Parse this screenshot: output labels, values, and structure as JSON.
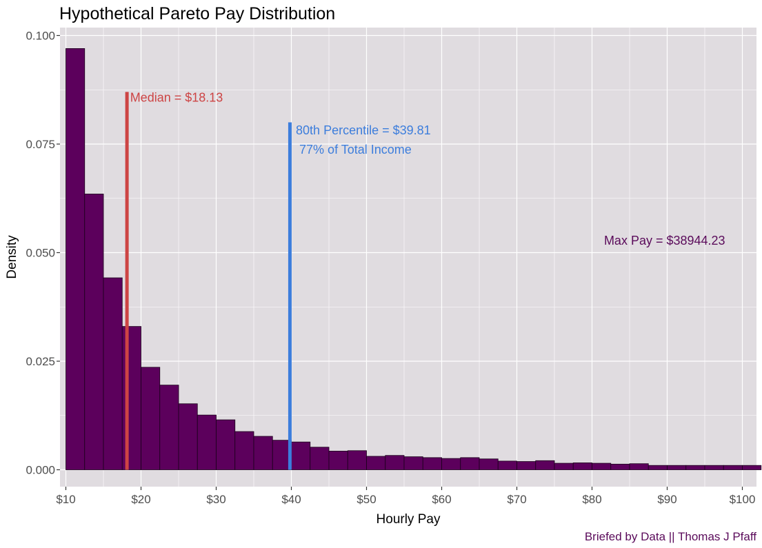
{
  "chart_data": {
    "type": "bar",
    "title": "Hypothetical Pareto Pay Distribution",
    "xlabel": "Hourly Pay",
    "ylabel": "Density",
    "xlim": [
      10,
      100
    ],
    "ylim": [
      0,
      0.1
    ],
    "grid": true,
    "x_ticks": [
      {
        "value": 10,
        "label": "$10"
      },
      {
        "value": 20,
        "label": "$20"
      },
      {
        "value": 30,
        "label": "$30"
      },
      {
        "value": 40,
        "label": "$40"
      },
      {
        "value": 50,
        "label": "$50"
      },
      {
        "value": 60,
        "label": "$60"
      },
      {
        "value": 70,
        "label": "$70"
      },
      {
        "value": 80,
        "label": "$80"
      },
      {
        "value": 90,
        "label": "$90"
      },
      {
        "value": 100,
        "label": "$100"
      }
    ],
    "y_ticks": [
      {
        "value": 0,
        "label": "0.000"
      },
      {
        "value": 0.025,
        "label": "0.025"
      },
      {
        "value": 0.05,
        "label": "0.050"
      },
      {
        "value": 0.075,
        "label": "0.075"
      },
      {
        "value": 0.1,
        "label": "0.100"
      }
    ],
    "bins": {
      "start": 10,
      "width": 2.5,
      "values": [
        0.097,
        0.0635,
        0.0442,
        0.033,
        0.0236,
        0.0195,
        0.0152,
        0.0126,
        0.0115,
        0.0088,
        0.0077,
        0.0068,
        0.0064,
        0.0052,
        0.0043,
        0.0044,
        0.0031,
        0.0033,
        0.003,
        0.0028,
        0.0026,
        0.0028,
        0.0025,
        0.002,
        0.0019,
        0.0021,
        0.0015,
        0.0016,
        0.0015,
        0.0013,
        0.0014,
        0.001,
        0.001,
        0.001,
        0.001,
        0.001,
        0.001
      ]
    },
    "reference_lines": [
      {
        "name": "median",
        "x": 18.13,
        "y_top": 0.087,
        "color": "#cd4444"
      },
      {
        "name": "p80",
        "x": 39.81,
        "y_top": 0.08,
        "color": "#3c7ddc"
      }
    ],
    "annotations": [
      {
        "name": "median-label",
        "text": "Median = $18.13",
        "x": 18.55,
        "y": 0.0848,
        "color": "#cd4444"
      },
      {
        "name": "p80-label",
        "text": "80th Percentile = $39.81",
        "x": 40.6,
        "y": 0.0772,
        "color": "#3c7ddc"
      },
      {
        "name": "p80-share-label",
        "text": " 77% of Total Income",
        "x": 40.6,
        "y": 0.0728,
        "color": "#3c7ddc"
      },
      {
        "name": "max-pay-label",
        "text": "Max Pay = $38944.23",
        "x": 81.6,
        "y": 0.0518,
        "color": "#5a0a5a"
      }
    ],
    "caption": "Briefed by Data || Thomas J Pfaff",
    "colors": {
      "bar_fill": "#5c005c",
      "bar_outline": "#1a001a",
      "panel_background": "#e0dce0",
      "grid": "#ffffff",
      "caption": "#5a0a5a"
    }
  }
}
